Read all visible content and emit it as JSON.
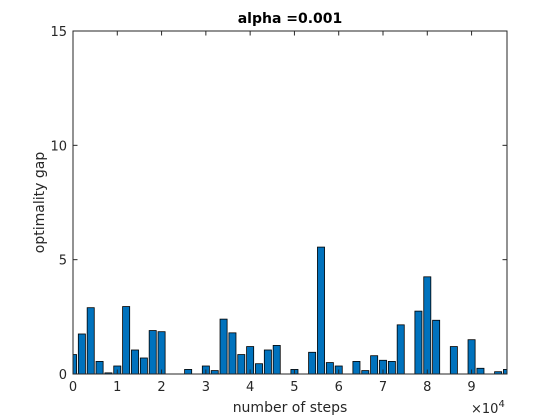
{
  "chart_data": {
    "type": "bar",
    "title": "alpha =0.001",
    "xlabel": "number of steps",
    "ylabel": "optimality gap",
    "x_scale_label": "×10",
    "x_scale_exponent": "4",
    "xlim": [
      0,
      9.8
    ],
    "ylim": [
      0,
      15
    ],
    "x_ticks": [
      0,
      1,
      2,
      3,
      4,
      5,
      6,
      7,
      8,
      9
    ],
    "y_ticks": [
      0,
      5,
      10,
      15
    ],
    "x_tick_labels": [
      "0",
      "1",
      "2",
      "3",
      "4",
      "5",
      "6",
      "7",
      "8",
      "9"
    ],
    "y_tick_labels": [
      "0",
      "5",
      "10",
      "15"
    ],
    "grid": false,
    "bar_color": "#0072BD",
    "edge_color": "#000000",
    "bar_width": 0.16,
    "x": [
      0.0,
      0.2,
      0.4,
      0.6,
      0.8,
      1.0,
      1.2,
      1.4,
      1.6,
      1.8,
      2.0,
      2.2,
      2.4,
      2.6,
      2.8,
      3.0,
      3.2,
      3.4,
      3.6,
      3.8,
      4.0,
      4.2,
      4.4,
      4.6,
      4.8,
      5.0,
      5.2,
      5.4,
      5.6,
      5.8,
      6.0,
      6.2,
      6.4,
      6.6,
      6.8,
      7.0,
      7.2,
      7.4,
      7.6,
      7.8,
      8.0,
      8.2,
      8.4,
      8.6,
      8.8,
      9.0,
      9.2,
      9.4,
      9.6,
      9.8
    ],
    "values": [
      0.85,
      1.75,
      2.9,
      0.55,
      0.05,
      0.35,
      2.95,
      1.05,
      0.7,
      1.9,
      1.85,
      0.0,
      0.0,
      0.2,
      0.0,
      0.35,
      0.15,
      2.4,
      1.8,
      0.85,
      1.2,
      0.45,
      1.05,
      1.25,
      0.0,
      0.2,
      0.0,
      0.95,
      5.55,
      0.5,
      0.35,
      0.0,
      0.55,
      0.15,
      0.8,
      0.6,
      0.55,
      2.15,
      0.0,
      2.75,
      4.25,
      2.35,
      0.0,
      1.2,
      0.0,
      1.5,
      0.25,
      0.0,
      0.1,
      0.2
    ]
  }
}
